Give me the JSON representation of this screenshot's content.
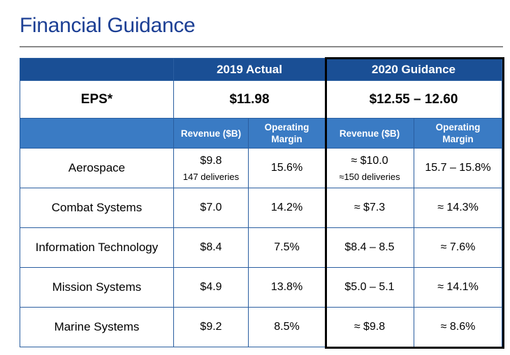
{
  "page": {
    "title": "Financial Guidance"
  },
  "table": {
    "header": {
      "actual": "2019 Actual",
      "guidance": "2020 Guidance"
    },
    "eps": {
      "label": "EPS*",
      "actual": "$11.98",
      "guidance": "$12.55 – 12.60"
    },
    "subheaders": {
      "revenue_actual": "Revenue ($B)",
      "margin_actual_1": "Operating",
      "margin_actual_2": "Margin",
      "revenue_guidance": "Revenue ($B)",
      "margin_guidance_1": "Operating",
      "margin_guidance_2": "Margin"
    },
    "rows": [
      {
        "segment": "Aerospace",
        "rev_actual": "$9.8",
        "rev_actual_note": "147 deliveries",
        "margin_actual": "15.6%",
        "rev_guidance": "≈ $10.0",
        "rev_guidance_note": "≈150 deliveries",
        "margin_guidance": "15.7 – 15.8%"
      },
      {
        "segment": "Combat Systems",
        "rev_actual": "$7.0",
        "margin_actual": "14.2%",
        "rev_guidance": "≈ $7.3",
        "margin_guidance": "≈ 14.3%"
      },
      {
        "segment": "Information Technology",
        "rev_actual": "$8.4",
        "margin_actual": "7.5%",
        "rev_guidance": "$8.4 – 8.5",
        "margin_guidance": "≈ 7.6%"
      },
      {
        "segment": "Mission Systems",
        "rev_actual": "$4.9",
        "margin_actual": "13.8%",
        "rev_guidance": "$5.0 – 5.1",
        "margin_guidance": "≈ 14.1%"
      },
      {
        "segment": "Marine Systems",
        "rev_actual": "$9.2",
        "margin_actual": "8.5%",
        "rev_guidance": "≈ $9.8",
        "margin_guidance": "≈ 8.6%"
      }
    ]
  }
}
